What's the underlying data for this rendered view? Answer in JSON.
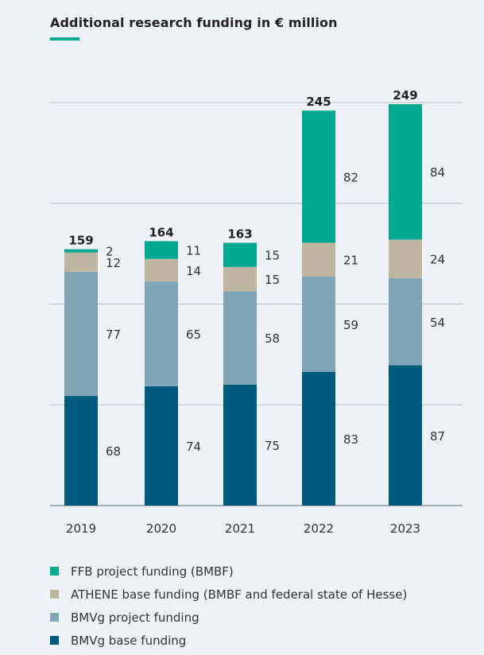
{
  "title": "Additional research funding in € million",
  "colors": {
    "ffb": "#00a98f",
    "athene": "#bfb6a1",
    "bmvg_project": "#7fa5b7",
    "bmvg_base": "#005a7d",
    "grid": "#b4c3cc",
    "accent": "#00a98f"
  },
  "chart_data": {
    "type": "bar",
    "stacked": true,
    "title": "Additional research funding in € million",
    "categories": [
      "2019",
      "2020",
      "2021",
      "2022",
      "2023"
    ],
    "totals": [
      159,
      164,
      163,
      245,
      249
    ],
    "series": [
      {
        "name": "BMVg base funding",
        "key": "bmvg_base",
        "values": [
          68,
          74,
          75,
          83,
          87
        ]
      },
      {
        "name": "BMVg project funding",
        "key": "bmvg_project",
        "values": [
          77,
          65,
          58,
          59,
          54
        ]
      },
      {
        "name": "ATHENE base funding (BMBF and federal state of Hesse)",
        "key": "athene",
        "values": [
          12,
          14,
          15,
          21,
          24
        ]
      },
      {
        "name": "FFB project funding (BMBF)",
        "key": "ffb",
        "values": [
          2,
          11,
          15,
          82,
          84
        ]
      }
    ],
    "ylim": [
      0,
      250
    ],
    "gridlines": [
      0,
      62.5,
      125,
      187.5,
      250
    ],
    "xlabel": "",
    "ylabel": "",
    "legend_position": "bottom"
  },
  "legend": [
    {
      "label": "FFB project funding (BMBF)",
      "key": "ffb"
    },
    {
      "label": "ATHENE base funding (BMBF and federal state of Hesse)",
      "key": "athene"
    },
    {
      "label": "BMVg project funding",
      "key": "bmvg_project"
    },
    {
      "label": "BMVg base funding",
      "key": "bmvg_base"
    }
  ]
}
